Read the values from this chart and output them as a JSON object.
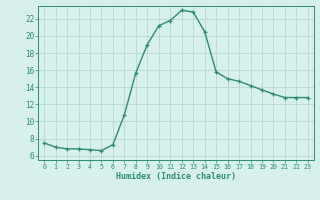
{
  "x": [
    0,
    1,
    2,
    3,
    4,
    5,
    6,
    7,
    8,
    9,
    10,
    11,
    12,
    13,
    14,
    15,
    16,
    17,
    18,
    19,
    20,
    21,
    22,
    23
  ],
  "y": [
    7.5,
    7.0,
    6.8,
    6.8,
    6.7,
    6.6,
    7.3,
    10.8,
    15.7,
    19.0,
    21.2,
    21.8,
    23.0,
    22.8,
    20.5,
    15.8,
    15.0,
    14.7,
    14.2,
    13.7,
    13.2,
    12.8,
    12.8,
    12.8
  ],
  "line_color": "#2e8b74",
  "marker": "+",
  "markersize": 3.5,
  "linewidth": 1.0,
  "xlabel": "Humidex (Indice chaleur)",
  "xlim": [
    -0.5,
    23.5
  ],
  "ylim": [
    5.5,
    23.5
  ],
  "yticks": [
    6,
    8,
    10,
    12,
    14,
    16,
    18,
    20,
    22
  ],
  "xticks": [
    0,
    1,
    2,
    3,
    4,
    5,
    6,
    7,
    8,
    9,
    10,
    11,
    12,
    13,
    14,
    15,
    16,
    17,
    18,
    19,
    20,
    21,
    22,
    23
  ],
  "bg_color": "#d6f0ee",
  "grid_color": "#b8d8d4",
  "tick_color": "#2e8b74",
  "label_color": "#2e8b74",
  "xlabel_fontsize": 6.0,
  "tick_fontsize_x": 4.8,
  "tick_fontsize_y": 5.5
}
